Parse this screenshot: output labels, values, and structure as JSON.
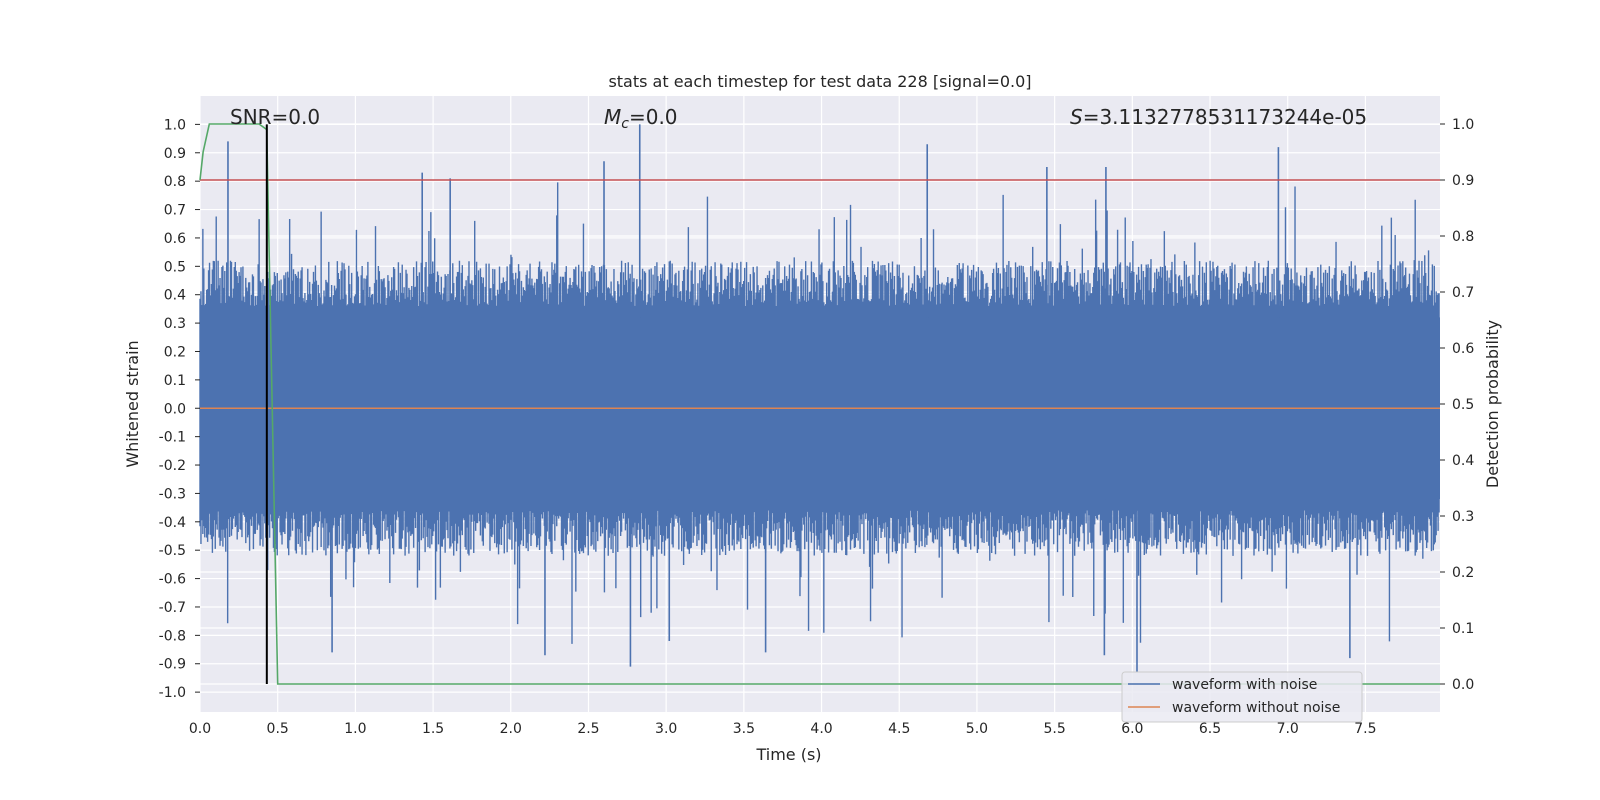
{
  "chart_data": {
    "type": "line",
    "title": "stats at each timestep for test data 228 [signal=0.0]",
    "xlabel": "Time (s)",
    "ylabel": "Whitened strain",
    "y2label": "Detection probability",
    "xlim": [
      0.0,
      7.98
    ],
    "ylim": [
      -1.07,
      1.1
    ],
    "y2lim": [
      -0.05,
      1.05
    ],
    "xticks": [
      "0.0",
      "0.5",
      "1.0",
      "1.5",
      "2.0",
      "2.5",
      "3.0",
      "3.5",
      "4.0",
      "4.5",
      "5.0",
      "5.5",
      "6.0",
      "6.5",
      "7.0",
      "7.5"
    ],
    "yticks": [
      "1.0",
      "0.9",
      "0.8",
      "0.7",
      "0.6",
      "0.5",
      "0.4",
      "0.3",
      "0.2",
      "0.1",
      "0.0",
      "-0.1",
      "-0.2",
      "-0.3",
      "-0.4",
      "-0.5",
      "-0.6",
      "-0.7",
      "-0.8",
      "-0.9",
      "-1.0"
    ],
    "y2ticks": [
      "1.0",
      "0.9",
      "0.8",
      "0.7",
      "0.6",
      "0.5",
      "0.4",
      "0.3",
      "0.2",
      "0.1",
      "0.0"
    ],
    "grid": true,
    "legend_position": "lower right",
    "annotations": {
      "snr": "SNR=0.0",
      "mc_symbol": "M",
      "mc_sub": "c",
      "mc_value": "=0.0",
      "s_symbol": "S",
      "s_value": "=3.1132778531173244e-05"
    },
    "threshold": {
      "value": 0.9,
      "axis": "right",
      "color": "#c44e52"
    },
    "marker_time": 0.43,
    "series": [
      {
        "name": "waveform with noise",
        "color": "#4c72b0",
        "axis": "left",
        "description_values": "dense noise approx. within +/-0.45 with occasional spikes to about 0.94 and -0.91",
        "notable_peaks": [
          {
            "x": 0.18,
            "y": 0.94
          },
          {
            "x": 1.43,
            "y": 0.83
          },
          {
            "x": 1.61,
            "y": 0.81
          },
          {
            "x": 2.6,
            "y": 0.87
          },
          {
            "x": 2.83,
            "y": 1.0
          },
          {
            "x": 4.68,
            "y": 0.93
          },
          {
            "x": 5.45,
            "y": 0.85
          },
          {
            "x": 5.83,
            "y": 0.85
          },
          {
            "x": 6.94,
            "y": 0.92
          },
          {
            "x": 0.85,
            "y": -0.86
          },
          {
            "x": 2.22,
            "y": -0.87
          },
          {
            "x": 2.77,
            "y": -0.91
          },
          {
            "x": 3.02,
            "y": -0.82
          },
          {
            "x": 3.64,
            "y": -0.86
          },
          {
            "x": 5.82,
            "y": -0.87
          },
          {
            "x": 6.03,
            "y": -0.93
          },
          {
            "x": 7.4,
            "y": -0.88
          }
        ]
      },
      {
        "name": "waveform without noise",
        "color": "#dd8452",
        "axis": "left",
        "x": [
          0.0,
          7.98
        ],
        "y": [
          0.0,
          0.0
        ]
      },
      {
        "name": "detection probability",
        "color": "#55a868",
        "axis": "right",
        "x": [
          0.0,
          0.02,
          0.06,
          0.1,
          0.15,
          0.2,
          0.3,
          0.38,
          0.43,
          0.43,
          0.5,
          1.0,
          2.0,
          4.0,
          6.0,
          7.98
        ],
        "y": [
          0.9,
          0.95,
          1.0,
          1.0,
          1.0,
          1.0,
          1.0,
          1.0,
          0.99,
          0.98,
          0.0,
          0.0,
          0.0,
          0.0,
          0.0,
          0.0
        ]
      }
    ]
  }
}
